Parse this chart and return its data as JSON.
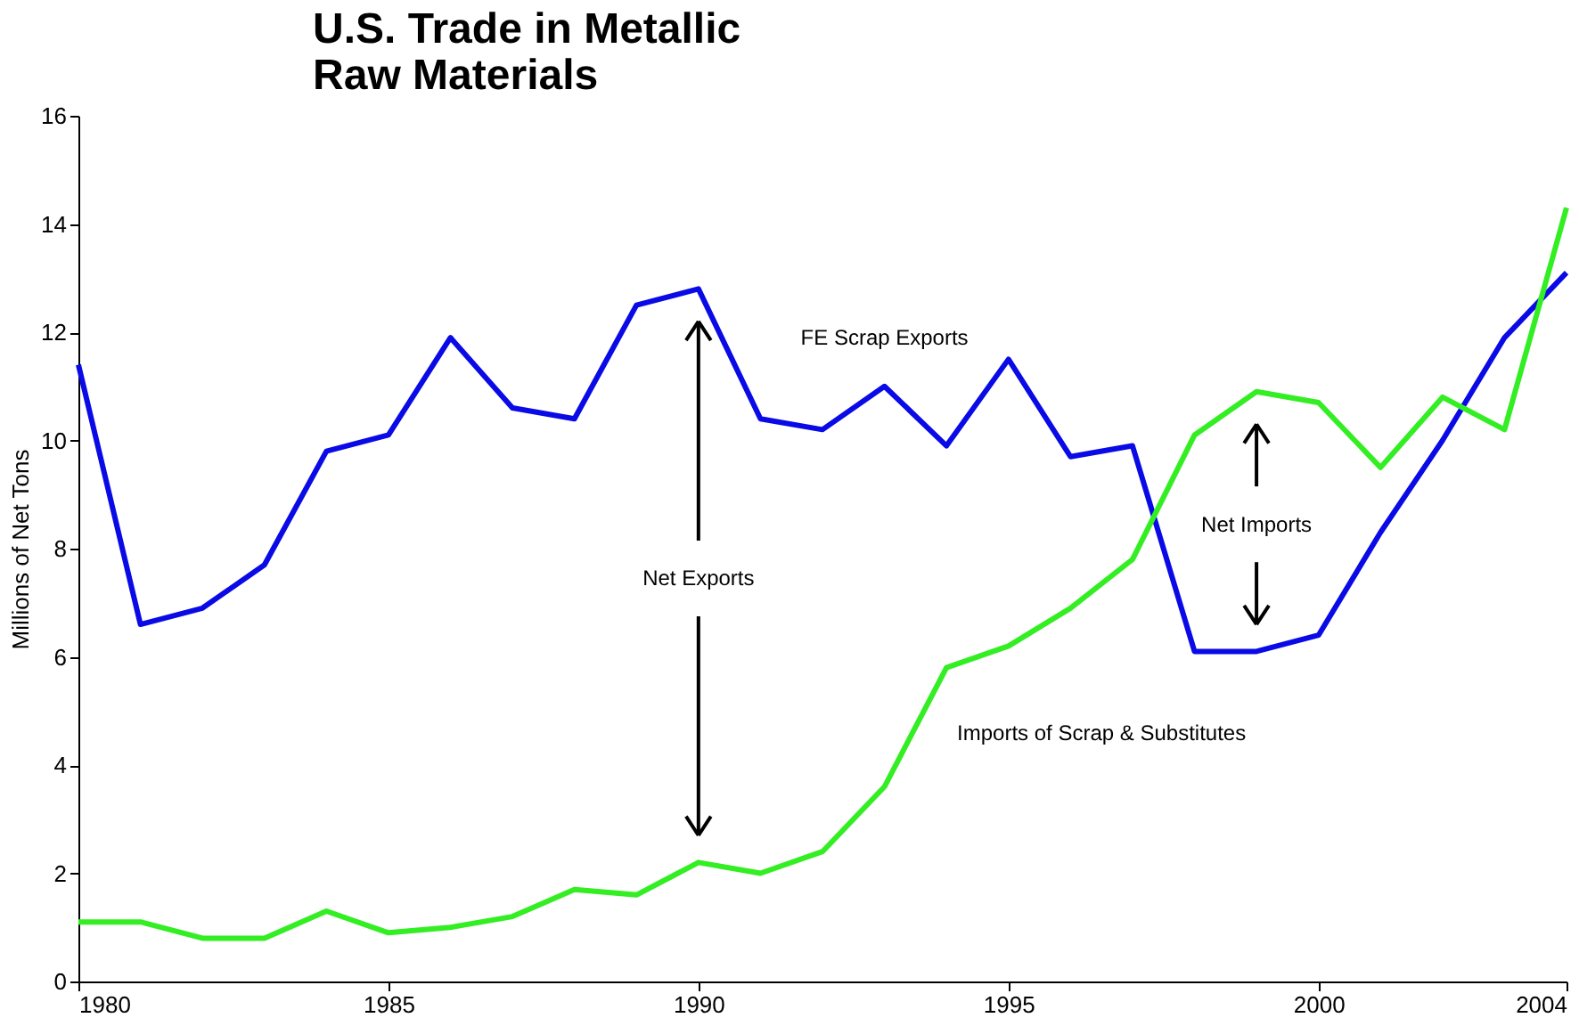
{
  "chart_data": {
    "type": "line",
    "title": "U.S. Trade in Metallic Raw Materials",
    "ylabel": "Millions of Net Tons",
    "x": [
      1980,
      1981,
      1982,
      1983,
      1984,
      1985,
      1986,
      1987,
      1988,
      1989,
      1990,
      1991,
      1992,
      1993,
      1994,
      1995,
      1996,
      1997,
      1998,
      1999,
      2000,
      2001,
      2002,
      2003,
      2004
    ],
    "series": [
      {
        "name": "FE Scrap Exports",
        "color": "#0a0ae6",
        "values": [
          11.4,
          6.6,
          6.9,
          7.7,
          9.8,
          10.1,
          11.9,
          10.6,
          10.4,
          12.5,
          12.8,
          10.4,
          10.2,
          11.0,
          9.9,
          11.5,
          9.7,
          9.9,
          6.1,
          6.1,
          6.4,
          8.3,
          10.0,
          11.9,
          13.1
        ]
      },
      {
        "name": "Imports of Scrap & Substitutes",
        "color": "#33ee22",
        "values": [
          1.1,
          1.1,
          0.8,
          0.8,
          1.3,
          0.9,
          1.0,
          1.2,
          1.7,
          1.6,
          2.2,
          2.0,
          2.4,
          3.6,
          5.8,
          6.2,
          6.9,
          7.8,
          10.1,
          10.9,
          10.7,
          9.5,
          10.8,
          10.2,
          14.3
        ]
      }
    ],
    "annotations": [
      "Net Exports",
      "Net Imports"
    ],
    "xlim": [
      1980,
      2004
    ],
    "xticks": [
      1980,
      1985,
      1990,
      1995,
      2000,
      2004
    ],
    "ylim": [
      0,
      16
    ],
    "yticks": [
      0,
      2,
      4,
      6,
      8,
      10,
      12,
      14,
      16
    ],
    "grid": false,
    "marker": "none",
    "line_style": "solid"
  }
}
